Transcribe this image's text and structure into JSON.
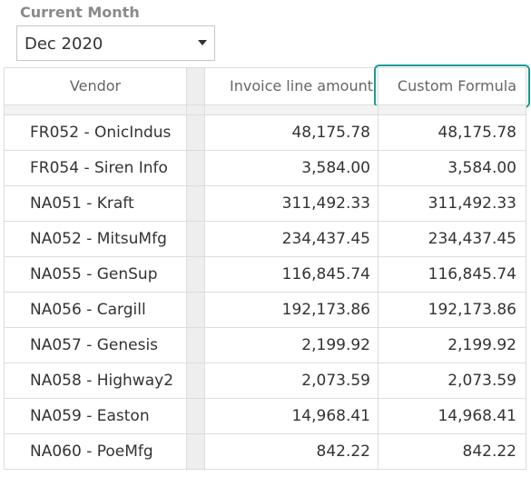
{
  "filter": {
    "label": "Current Month",
    "selected": "Dec 2020"
  },
  "table": {
    "columns": [
      "Vendor",
      "Invoice line amount",
      "Custom Formula"
    ],
    "rows": [
      {
        "vendor": "FR052 - OnicIndus",
        "invoice": "48,175.78",
        "custom": "48,175.78"
      },
      {
        "vendor": "FR054 - Siren Info",
        "invoice": "3,584.00",
        "custom": "3,584.00"
      },
      {
        "vendor": "NA051 - Kraft",
        "invoice": "311,492.33",
        "custom": "311,492.33"
      },
      {
        "vendor": "NA052 - MitsuMfg",
        "invoice": "234,437.45",
        "custom": "234,437.45"
      },
      {
        "vendor": "NA055 - GenSup",
        "invoice": "116,845.74",
        "custom": "116,845.74"
      },
      {
        "vendor": "NA056 - Cargill",
        "invoice": "192,173.86",
        "custom": "192,173.86"
      },
      {
        "vendor": "NA057 - Genesis",
        "invoice": "2,199.92",
        "custom": "2,199.92"
      },
      {
        "vendor": "NA058 - Highway2",
        "invoice": "2,073.59",
        "custom": "2,073.59"
      },
      {
        "vendor": "NA059 - Easton",
        "invoice": "14,968.41",
        "custom": "14,968.41"
      },
      {
        "vendor": "NA060 - PoeMfg",
        "invoice": "842.22",
        "custom": "842.22"
      }
    ]
  },
  "colors": {
    "highlight": "#1a9c93",
    "gridline": "#dddddd",
    "gutter": "#eeeeee"
  }
}
